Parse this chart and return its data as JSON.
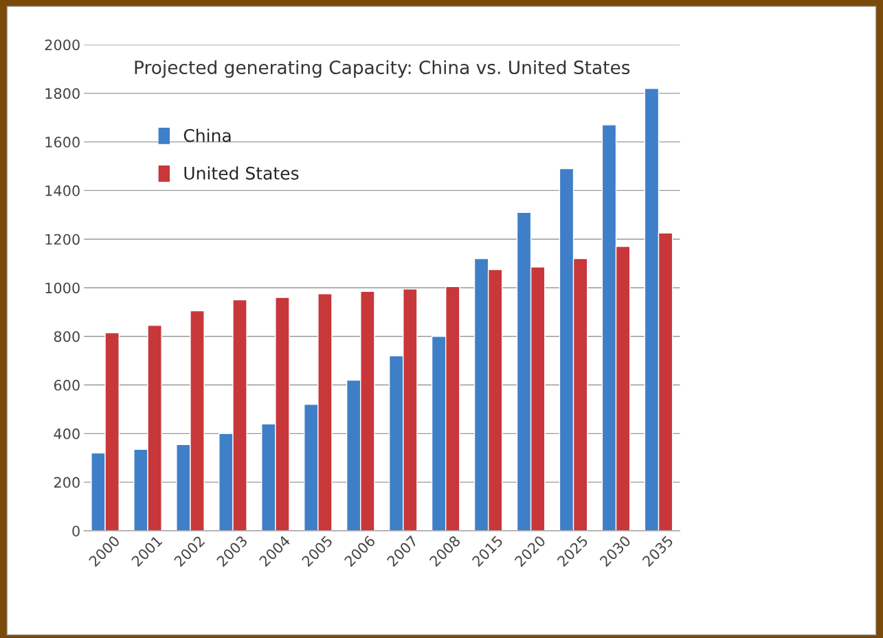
{
  "chart_data": {
    "type": "bar",
    "title": "Projected generating Capacity: China vs. United States",
    "categories": [
      "2000",
      "2001",
      "2002",
      "2003",
      "2004",
      "2005",
      "2006",
      "2007",
      "2008",
      "2015",
      "2020",
      "2025",
      "2030",
      "2035"
    ],
    "series": [
      {
        "name": "China",
        "color": "#3f7fc8",
        "values": [
          320,
          335,
          355,
          400,
          440,
          520,
          620,
          720,
          800,
          1120,
          1310,
          1490,
          1670,
          1820
        ]
      },
      {
        "name": "United States",
        "color": "#c8373a",
        "values": [
          815,
          845,
          905,
          950,
          960,
          975,
          985,
          995,
          1005,
          1075,
          1085,
          1120,
          1170,
          1225
        ]
      }
    ],
    "ylim": [
      0,
      2000
    ],
    "yticks": [
      0,
      200,
      400,
      600,
      800,
      1000,
      1200,
      1400,
      1600,
      1800,
      2000
    ],
    "grid": "y",
    "legend": "top left"
  }
}
